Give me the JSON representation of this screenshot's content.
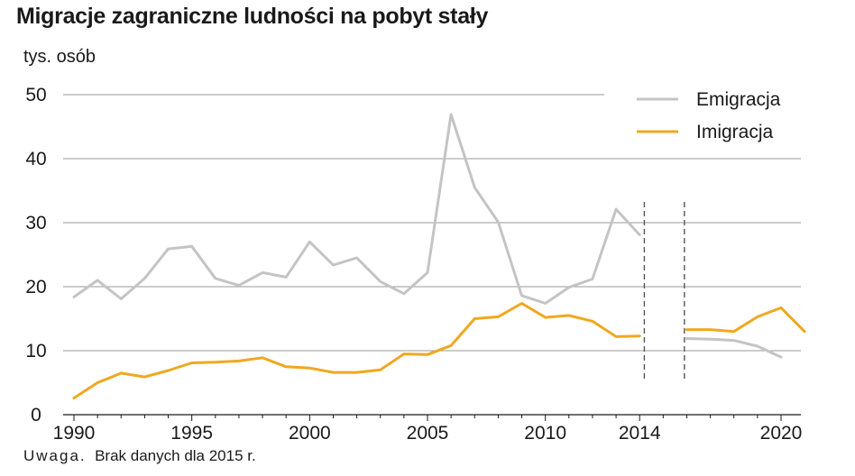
{
  "title": "Migracje zagraniczne ludności na pobyt stały",
  "unit": "tys. osób",
  "note": {
    "prefix": "Uwaga.",
    "text": "Brak danych dla 2015 r."
  },
  "chart_data": {
    "type": "line",
    "title": "Migracje zagraniczne ludności na pobyt stały",
    "ylabel": "tys. osób",
    "xlabel": "",
    "ylim": [
      0,
      50
    ],
    "yticks": [
      0,
      10,
      20,
      30,
      40,
      50
    ],
    "xticks": [
      1990,
      1995,
      2000,
      2005,
      2010,
      2014,
      2020
    ],
    "xlim": [
      1990,
      2020
    ],
    "grid": "horizontal",
    "legend_position": "top-right",
    "break_after": 2014,
    "break_before": 2016,
    "series": [
      {
        "name": "Emigracja",
        "color": "#c4c4c4",
        "points": [
          [
            1990,
            18.4
          ],
          [
            1991,
            21.0
          ],
          [
            1992,
            18.1
          ],
          [
            1993,
            21.3
          ],
          [
            1994,
            25.9
          ],
          [
            1995,
            26.3
          ],
          [
            1996,
            21.3
          ],
          [
            1997,
            20.2
          ],
          [
            1998,
            22.2
          ],
          [
            1999,
            21.5
          ],
          [
            2000,
            27.0
          ],
          [
            2001,
            23.4
          ],
          [
            2002,
            24.5
          ],
          [
            2003,
            20.8
          ],
          [
            2004,
            18.9
          ],
          [
            2005,
            22.2
          ],
          [
            2006,
            46.9
          ],
          [
            2007,
            35.5
          ],
          [
            2008,
            30.1
          ],
          [
            2009,
            18.6
          ],
          [
            2010,
            17.4
          ],
          [
            2011,
            19.9
          ],
          [
            2012,
            21.2
          ],
          [
            2013,
            32.1
          ],
          [
            2014,
            28.1
          ],
          [
            2016,
            11.9
          ],
          [
            2017,
            11.8
          ],
          [
            2018,
            11.6
          ],
          [
            2019,
            10.7
          ],
          [
            2020,
            9.0
          ]
        ]
      },
      {
        "name": "Imigracja",
        "color": "#f0a820",
        "points": [
          [
            1990,
            2.6
          ],
          [
            1991,
            5.0
          ],
          [
            1992,
            6.5
          ],
          [
            1993,
            5.9
          ],
          [
            1994,
            6.9
          ],
          [
            1995,
            8.1
          ],
          [
            1996,
            8.2
          ],
          [
            1997,
            8.4
          ],
          [
            1998,
            8.9
          ],
          [
            1999,
            7.5
          ],
          [
            2000,
            7.3
          ],
          [
            2001,
            6.6
          ],
          [
            2002,
            6.6
          ],
          [
            2003,
            7.0
          ],
          [
            2004,
            9.5
          ],
          [
            2005,
            9.4
          ],
          [
            2006,
            10.8
          ],
          [
            2007,
            15.0
          ],
          [
            2008,
            15.3
          ],
          [
            2009,
            17.4
          ],
          [
            2010,
            15.2
          ],
          [
            2011,
            15.5
          ],
          [
            2012,
            14.6
          ],
          [
            2013,
            12.2
          ],
          [
            2014,
            12.3
          ],
          [
            2016,
            13.3
          ],
          [
            2017,
            13.3
          ],
          [
            2018,
            13.0
          ],
          [
            2019,
            15.3
          ],
          [
            2020,
            16.7
          ],
          [
            2021,
            13.0
          ]
        ]
      }
    ]
  }
}
